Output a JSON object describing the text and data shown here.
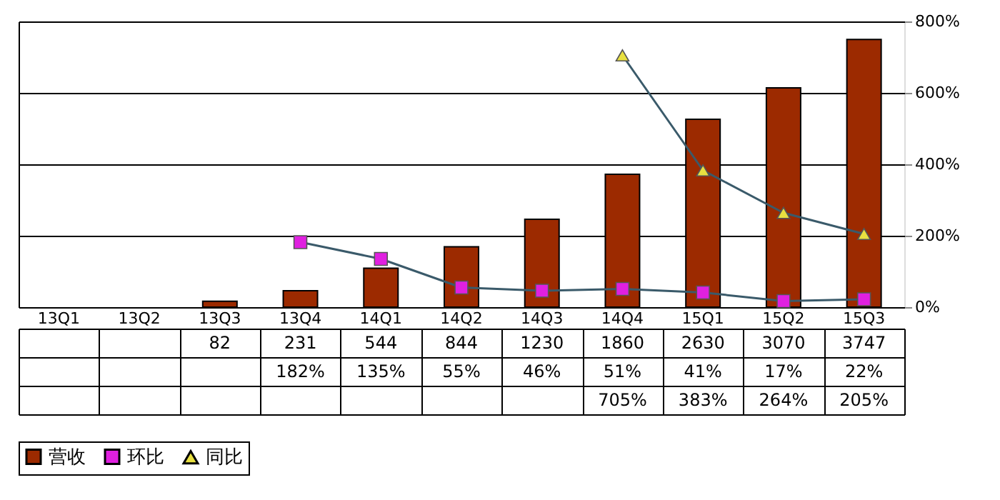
{
  "chart_data": {
    "type": "bar",
    "categories": [
      "13Q1",
      "13Q2",
      "13Q3",
      "13Q4",
      "14Q1",
      "14Q2",
      "14Q3",
      "14Q4",
      "15Q1",
      "15Q2",
      "15Q3"
    ],
    "series": [
      {
        "name": "营收",
        "color": "#9c2a00",
        "values": [
          null,
          null,
          82,
          231,
          544,
          844,
          1230,
          1860,
          2630,
          3070,
          3747
        ],
        "value_labels": [
          null,
          null,
          "82",
          "231",
          "544",
          "844",
          "1230",
          "1860",
          "2630",
          "3070",
          "3747"
        ]
      },
      {
        "name": "环比",
        "type": "line",
        "axis": "y2",
        "marker": "square",
        "color": "#e020e0",
        "values": [
          null,
          null,
          null,
          182,
          135,
          55,
          46,
          51,
          41,
          17,
          22
        ],
        "value_labels": [
          null,
          null,
          null,
          "182%",
          "135%",
          "55%",
          "46%",
          "51%",
          "41%",
          "17%",
          "22%"
        ]
      },
      {
        "name": "同比",
        "type": "line",
        "axis": "y2",
        "marker": "triangle",
        "color": "#e8e040",
        "values": [
          null,
          null,
          null,
          null,
          null,
          null,
          null,
          705,
          383,
          264,
          205
        ],
        "value_labels": [
          null,
          null,
          null,
          null,
          null,
          null,
          null,
          "705%",
          "383%",
          "264%",
          "205%"
        ]
      }
    ],
    "ylim": [
      0,
      4000
    ],
    "yticks": [
      {
        "value": 0,
        "label": null
      },
      {
        "value": 1000,
        "label": null
      },
      {
        "value": 2000,
        "label": null
      },
      {
        "value": 3000,
        "label": null
      },
      {
        "value": 4000,
        "label": null
      }
    ],
    "y2lim": [
      0,
      800
    ],
    "y2ticks": [
      {
        "value": 0,
        "label": "0%"
      },
      {
        "value": 200,
        "label": "200%"
      },
      {
        "value": 400,
        "label": "400%"
      },
      {
        "value": 600,
        "label": "600%"
      },
      {
        "value": 800,
        "label": "800%"
      }
    ],
    "grid": "y",
    "legend": "bottom",
    "line_style": "solid"
  }
}
